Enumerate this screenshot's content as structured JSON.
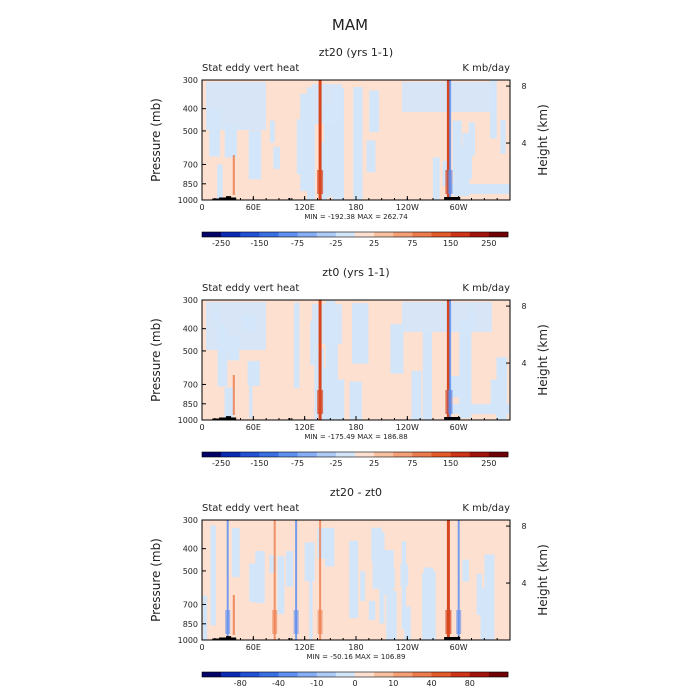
{
  "figure": {
    "title": "MAM"
  },
  "chart_data": [
    {
      "type": "heatmap",
      "title": "zt20 (yrs 1-1)",
      "left_label": "Stat eddy vert heat",
      "right_label": "K mb/day",
      "ylabel": "Pressure (mb)",
      "y2label": "Height (km)",
      "x_ticks": [
        "0",
        "60E",
        "120E",
        "180",
        "120W",
        "60W"
      ],
      "y_ticks": [
        "300",
        "400",
        "500",
        "700",
        "850",
        "1000"
      ],
      "y2_ticks": [
        "8",
        "4"
      ],
      "stats": "MIN = -192.38   MAX = 262.74",
      "colorbar_labels": [
        "-250",
        "-150",
        "-75",
        "-25",
        "25",
        "75",
        "150",
        "250"
      ],
      "background_value": "25 to 75 (light orange)",
      "features": [
        {
          "lon": 138,
          "kind": "strong positive column"
        },
        {
          "lon": 288,
          "kind": "strong positive column"
        },
        {
          "lon": 290,
          "kind": "negative column"
        }
      ]
    },
    {
      "type": "heatmap",
      "title": "zt0 (yrs 1-1)",
      "left_label": "Stat eddy vert heat",
      "right_label": "K mb/day",
      "ylabel": "Pressure (mb)",
      "y2label": "Height (km)",
      "x_ticks": [
        "0",
        "60E",
        "120E",
        "180",
        "120W",
        "60W"
      ],
      "y_ticks": [
        "300",
        "400",
        "500",
        "700",
        "850",
        "1000"
      ],
      "y2_ticks": [
        "8",
        "4"
      ],
      "stats": "MIN = -175.49   MAX = 186.88",
      "colorbar_labels": [
        "-250",
        "-150",
        "-75",
        "-25",
        "25",
        "75",
        "150",
        "250"
      ],
      "background_value": "25 to 75 (light orange)",
      "features": [
        {
          "lon": 138,
          "kind": "strong positive column"
        },
        {
          "lon": 288,
          "kind": "strong positive column"
        },
        {
          "lon": 290,
          "kind": "negative column"
        }
      ]
    },
    {
      "type": "heatmap",
      "title": "zt20 - zt0",
      "left_label": "Stat eddy vert heat",
      "right_label": "K mb/day",
      "ylabel": "Pressure (mb)",
      "y2label": "Height (km)",
      "x_ticks": [
        "0",
        "60E",
        "120E",
        "180",
        "120W",
        "60W"
      ],
      "y_ticks": [
        "300",
        "400",
        "500",
        "700",
        "850",
        "1000"
      ],
      "y2_ticks": [
        "8",
        "4"
      ],
      "stats": "MIN = -50.16   MAX = 106.89",
      "colorbar_labels": [
        "-80",
        "-40",
        "-10",
        "0",
        "10",
        "40",
        "80"
      ],
      "background_value": "0 to 10 (light orange)",
      "features": [
        {
          "lon": 30,
          "kind": "negative column"
        },
        {
          "lon": 85,
          "kind": "positive column"
        },
        {
          "lon": 110,
          "kind": "negative column"
        },
        {
          "lon": 138,
          "kind": "positive column"
        },
        {
          "lon": 288,
          "kind": "strong positive column"
        },
        {
          "lon": 300,
          "kind": "negative column"
        }
      ]
    }
  ],
  "colors": {
    "cb_full": [
      "#030365",
      "#0a2ab3",
      "#2351d6",
      "#3a6fe3",
      "#5f8ff0",
      "#86aef4",
      "#aecbf6",
      "#d3e5f9",
      "#fde0cf",
      "#f9c1a2",
      "#f39f77",
      "#ec7c4d",
      "#e45a2b",
      "#cd3418",
      "#a2140b",
      "#6f0206"
    ],
    "cb_diff": [
      "#030365",
      "#0a2ab3",
      "#2351d6",
      "#3a6fe3",
      "#5f8ff0",
      "#86aef4",
      "#aecbf6",
      "#d3e5f9",
      "#fde0cf",
      "#f9c1a2",
      "#f39f77",
      "#ec7c4d",
      "#e45a2b",
      "#cd3418",
      "#a2140b",
      "#6f0206"
    ],
    "light_pos": "#fde0cf",
    "light_neg": "#d3e5f9",
    "strong_pos": "#d8461f",
    "topography": "#000000"
  }
}
